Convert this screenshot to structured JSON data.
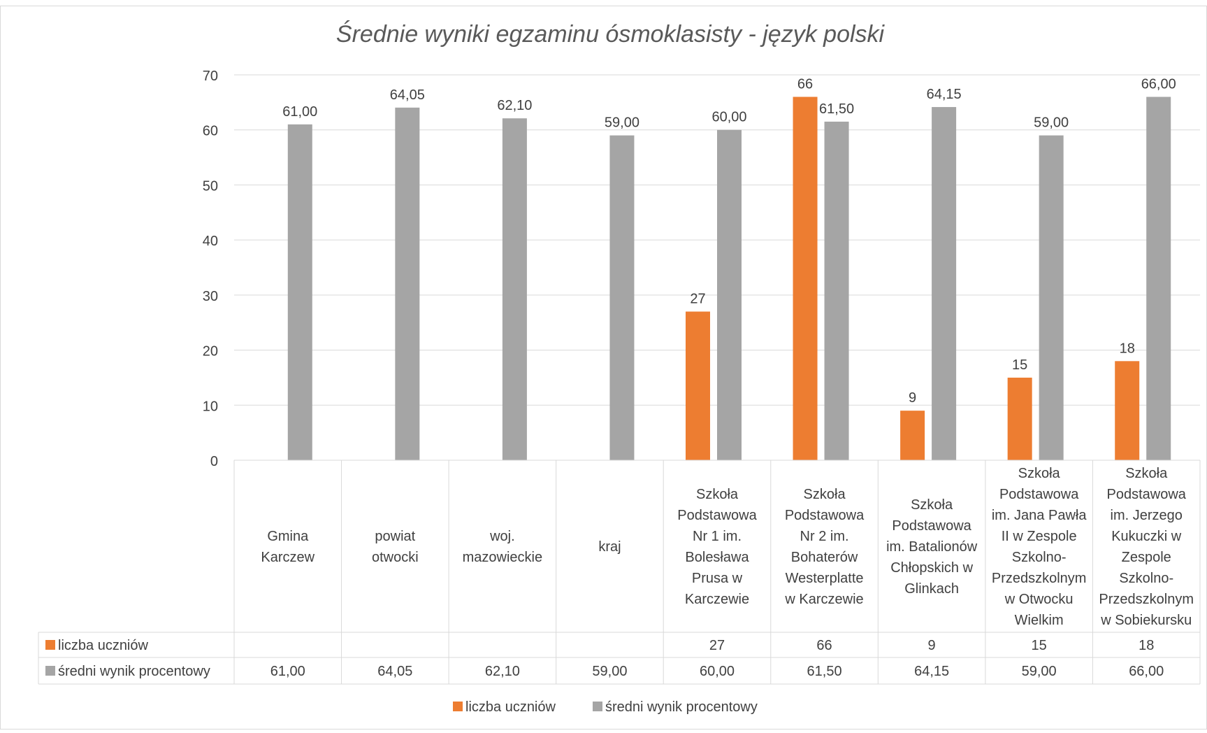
{
  "chart_data": {
    "type": "bar",
    "title": "Średnie wyniki egzaminu ósmoklasisty - język polski",
    "ylim": [
      0,
      70
    ],
    "yticks": [
      0,
      10,
      20,
      30,
      40,
      50,
      60,
      70
    ],
    "grid": true,
    "legend_position": "bottom",
    "data_table": true,
    "categories": [
      [
        "Gmina",
        "Karczew"
      ],
      [
        "powiat",
        "otwocki"
      ],
      [
        "woj.",
        "mazowieckie"
      ],
      [
        "kraj"
      ],
      [
        "Szkoła",
        "Podstawowa",
        "Nr 1 im.",
        "Bolesława",
        "Prusa w",
        "Karczewie"
      ],
      [
        "Szkoła",
        "Podstawowa",
        "Nr 2 im.",
        "Bohaterów",
        "Westerplatte",
        "w Karczewie"
      ],
      [
        "Szkoła",
        "Podstawowa",
        "im. Batalionów",
        "Chłopskich w",
        "Glinkach"
      ],
      [
        "Szkoła",
        "Podstawowa",
        "im. Jana Pawła",
        "II w Zespole",
        "Szkolno-",
        "Przedszkolnym",
        "w Otwocku",
        "Wielkim"
      ],
      [
        "Szkoła",
        "Podstawowa",
        "im. Jerzego",
        "Kukuczki w",
        "Zespole",
        "Szkolno-",
        "Przedszkolnym",
        "w Sobiekursku"
      ]
    ],
    "series": [
      {
        "name": "liczba uczniów",
        "color": "#ED7D31",
        "values": [
          null,
          null,
          null,
          null,
          27,
          66,
          9,
          15,
          18
        ],
        "labels": [
          "",
          "",
          "",
          "",
          "27",
          "66",
          "9",
          "15",
          "18"
        ]
      },
      {
        "name": "średni wynik procentowy",
        "color": "#A5A5A5",
        "values": [
          61.0,
          64.05,
          62.1,
          59.0,
          60.0,
          61.5,
          64.15,
          59.0,
          66.0
        ],
        "labels": [
          "61,00",
          "64,05",
          "62,10",
          "59,00",
          "60,00",
          "61,50",
          "64,15",
          "59,00",
          "66,00"
        ]
      }
    ]
  }
}
